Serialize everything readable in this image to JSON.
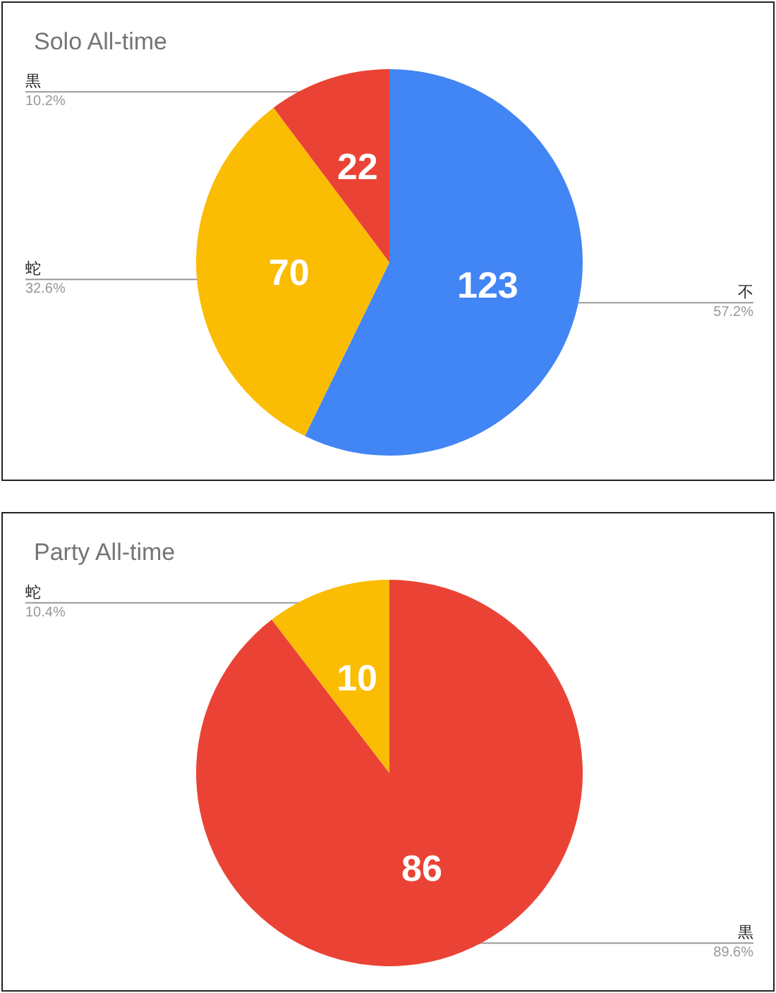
{
  "chart_data": [
    {
      "type": "pie",
      "title": "Solo All-time",
      "categories": [
        "不",
        "蛇",
        "黒"
      ],
      "values": [
        123,
        70,
        22
      ],
      "colors": [
        "#4285f4",
        "#fbbc04",
        "#ea4335"
      ],
      "data_labels": true,
      "annotations": [
        "57.2%",
        "32.6%",
        "10.2%"
      ],
      "legend": false
    },
    {
      "type": "pie",
      "title": "Party All-time",
      "categories": [
        "黒",
        "蛇"
      ],
      "values": [
        86,
        10
      ],
      "colors": [
        "#ea4335",
        "#fbbc04"
      ],
      "data_labels": true,
      "annotations": [
        "89.6%",
        "10.4%"
      ],
      "legend": false
    }
  ]
}
